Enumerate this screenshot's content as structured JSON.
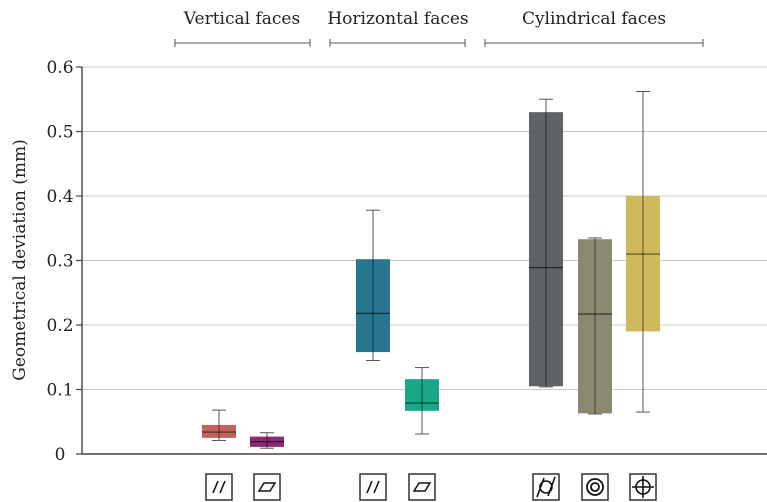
{
  "chart_data": {
    "type": "box",
    "ylabel": "Geometrical deviation (mm)",
    "ylim": [
      0,
      0.6
    ],
    "yticks": [
      0,
      0.1,
      0.2,
      0.3,
      0.4,
      0.5,
      0.6
    ],
    "ytick_labels": [
      "0",
      "0.1",
      "0.2",
      "0.3",
      "0.4",
      "0.5",
      "0.6"
    ],
    "grid": true,
    "groups": [
      {
        "label": "Vertical faces",
        "members": [
          0,
          1
        ]
      },
      {
        "label": "Horizontal faces",
        "members": [
          2,
          3
        ]
      },
      {
        "label": "Cylindrical faces",
        "members": [
          4,
          5,
          6
        ]
      }
    ],
    "boxes": [
      {
        "symbol": "parallelism-icon",
        "color": "#c0645a",
        "min": 0.021,
        "q1": 0.025,
        "median": 0.034,
        "q3": 0.045,
        "max": 0.068
      },
      {
        "symbol": "flatness-icon",
        "color": "#8d2a78",
        "min": 0.009,
        "q1": 0.011,
        "median": 0.019,
        "q3": 0.027,
        "max": 0.033
      },
      {
        "symbol": "parallelism-icon",
        "color": "#27758f",
        "min": 0.145,
        "q1": 0.158,
        "median": 0.218,
        "q3": 0.302,
        "max": 0.378
      },
      {
        "symbol": "flatness-icon",
        "color": "#1aa688",
        "min": 0.031,
        "q1": 0.067,
        "median": 0.079,
        "q3": 0.116,
        "max": 0.134
      },
      {
        "symbol": "cylindricity-icon",
        "color": "#5e6269",
        "min": 0.104,
        "q1": 0.105,
        "median": 0.289,
        "q3": 0.53,
        "max": 0.55
      },
      {
        "symbol": "concentricity-icon",
        "color": "#8c8870",
        "min": 0.062,
        "q1": 0.063,
        "median": 0.217,
        "q3": 0.333,
        "max": 0.335
      },
      {
        "symbol": "position-icon",
        "color": "#d0b95c",
        "min": 0.065,
        "q1": 0.19,
        "median": 0.31,
        "q3": 0.4,
        "max": 0.562
      }
    ]
  }
}
